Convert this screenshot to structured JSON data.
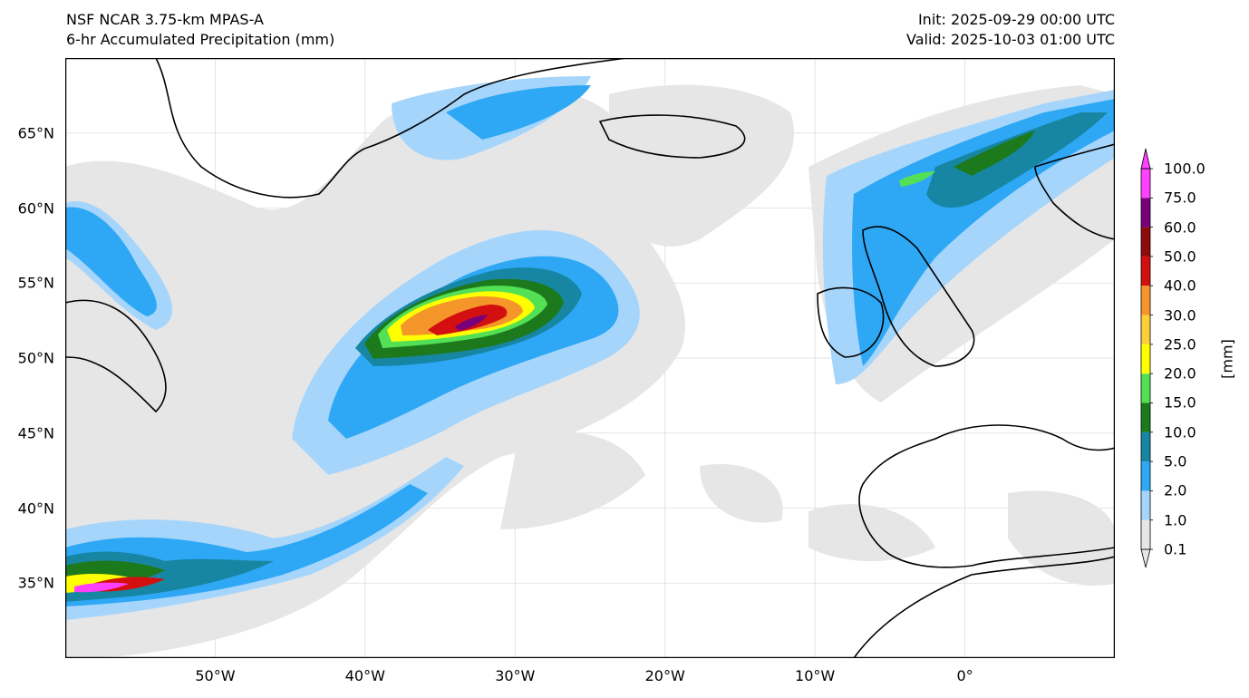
{
  "header": {
    "model": "NSF NCAR 3.75-km MPAS-A",
    "field": "6-hr Accumulated Precipitation (mm)",
    "init": "Init: 2025-09-29 00:00 UTC",
    "valid": "Valid: 2025-10-03 01:00 UTC"
  },
  "map": {
    "projection": "PlateCarree",
    "lon_range": [
      -60,
      10
    ],
    "lat_range": [
      30,
      70
    ],
    "lat_ticks": [
      {
        "value": 65,
        "label": "65°N"
      },
      {
        "value": 60,
        "label": "60°N"
      },
      {
        "value": 55,
        "label": "55°N"
      },
      {
        "value": 50,
        "label": "50°N"
      },
      {
        "value": 45,
        "label": "45°N"
      },
      {
        "value": 40,
        "label": "40°N"
      },
      {
        "value": 35,
        "label": "35°N"
      }
    ],
    "lon_ticks": [
      {
        "value": -50,
        "label": "50°W"
      },
      {
        "value": -40,
        "label": "40°W"
      },
      {
        "value": -30,
        "label": "30°W"
      },
      {
        "value": -20,
        "label": "20°W"
      },
      {
        "value": -10,
        "label": "10°W"
      },
      {
        "value": 0,
        "label": "0°"
      }
    ]
  },
  "colorbar": {
    "unit_label": "[mm]",
    "levels": [
      "0.1",
      "1.0",
      "2.0",
      "5.0",
      "10.0",
      "15.0",
      "20.0",
      "25.0",
      "30.0",
      "40.0",
      "50.0",
      "60.0",
      "75.0",
      "100.0"
    ],
    "colors": [
      "#e6e6e6",
      "#a6d5fb",
      "#2ea8f5",
      "#1786a3",
      "#1c7a1c",
      "#54e054",
      "#ffff00",
      "#fccf3a",
      "#f4962a",
      "#d40f0f",
      "#8e0b0b",
      "#7a007a",
      "#ff40ff"
    ]
  }
}
